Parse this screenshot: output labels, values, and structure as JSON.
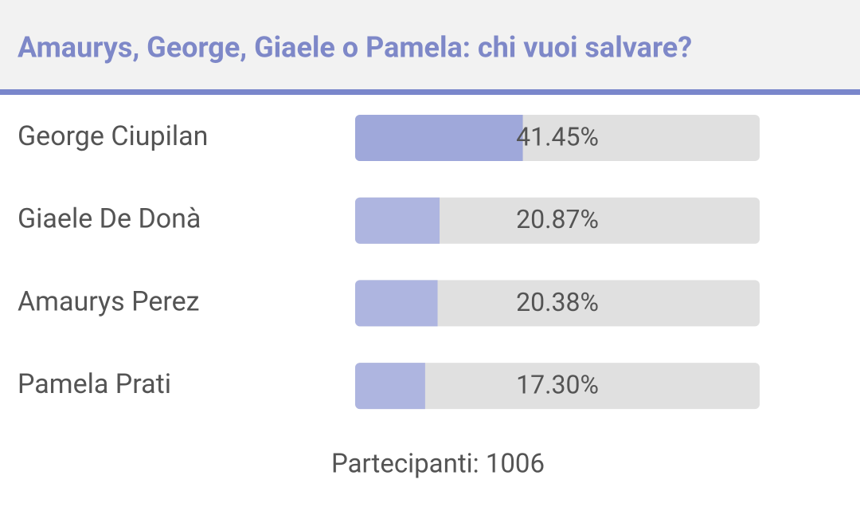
{
  "chart_data": {
    "type": "bar",
    "orientation": "horizontal",
    "title": "Amaurys, George, Giaele o Pamela: chi vuoi salvare?",
    "categories": [
      "George Ciupilan",
      "Giaele De Donà",
      "Amaurys Perez",
      "Pamela Prati"
    ],
    "values": [
      41.45,
      20.87,
      20.38,
      17.3
    ],
    "value_labels": [
      "41.45%",
      "20.87%",
      "20.38%",
      "17.30%"
    ],
    "colors": [
      "#9fa8da",
      "#aeb5e0",
      "#aeb5e0",
      "#aeb5e0"
    ],
    "xlim": [
      0,
      100
    ],
    "footer": "Partecipanti: 1006"
  }
}
